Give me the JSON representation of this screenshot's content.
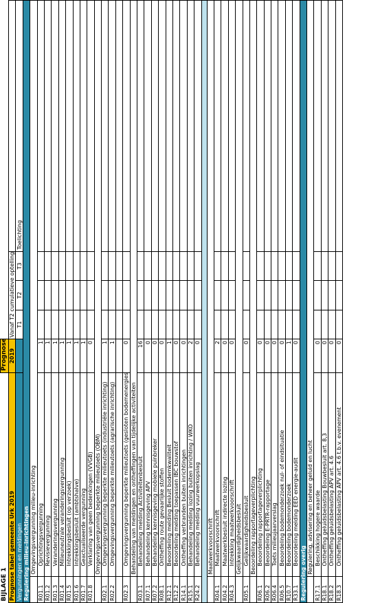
{
  "title": "BIJLAGE 1",
  "subtitle": "Prognose tabel gemeente Urk 2019",
  "headers": {
    "prognose": "Prognose",
    "year": "2019",
    "vanaf": "Vanaf T2 cumulatieve optelling",
    "t1": "T1",
    "t2": "T2",
    "t3": "T3",
    "toelichting": "Toelichting",
    "vergunningen": "Vergunningen en meldingen"
  },
  "sections": [
    {
      "type": "cat",
      "label": "Regulering milieu-inrichtingen"
    },
    {
      "type": "sub",
      "label": "Omgevingsvergunning milieu-inrichting"
    },
    {
      "type": "row",
      "code": "R01.1",
      "label": "Oprichtingsvergunning",
      "value": "1"
    },
    {
      "type": "row",
      "code": "R01.2",
      "label": "Revisievergunning",
      "value": "1"
    },
    {
      "type": "row",
      "code": "R01.3",
      "label": "Veranderingsvergunning",
      "value": "1"
    },
    {
      "type": "row",
      "code": "R01.4",
      "label": "Milieuneutrale veranderingsvergunning",
      "value": "1"
    },
    {
      "type": "row",
      "code": "R01.5",
      "label": "Intrekkingsbesluit (op verzoek)",
      "value": "1"
    },
    {
      "type": "row",
      "code": "R01.6",
      "label": "Intrekkingsbesluit (ambtshalve)",
      "value": "1"
    },
    {
      "type": "row",
      "code": "R01.7",
      "label": "Geactualiseerde vergunning",
      "value": "1"
    },
    {
      "type": "row",
      "code": "R01.8",
      "label": "Verklaring van geen bedenkingen (VVGB)",
      "value": "0"
    },
    {
      "type": "sub",
      "label": "Omgevingsvergunning beperkte milieutoets (OBM)"
    },
    {
      "type": "row",
      "code": "R02.1",
      "label": "Omgevingsvergunning beperkte milieutoets (industriële inrichting)",
      "value": "1"
    },
    {
      "type": "row",
      "code": "R02.2",
      "label": "Omgevingsvergunning beperkte milieutoets (agrarische inrichting)",
      "value": "1"
    },
    {
      "type": "blank"
    },
    {
      "type": "row",
      "code": "R02.3",
      "label": "Omgevingsvergunning beperkte milieutoets (gesloten bodemenergiesysteem)",
      "value": "0"
    },
    {
      "type": "sub",
      "label": "Behandeling van meldingen en ontheffingen van tijdelijke activiteiten"
    },
    {
      "type": "row",
      "code": "R03.1",
      "label": "Behandeling melding Activiteitenbesluit",
      "value": "16"
    },
    {
      "type": "row",
      "code": "R07.1",
      "label": "Behandeling kennisgeving APV",
      "value": "0"
    },
    {
      "type": "row",
      "code": "R07.2",
      "label": "Behandeling kennisgeving mobiele puinbreker",
      "value": "0"
    },
    {
      "type": "row",
      "code": "R08.1",
      "label": "Ontheffing route gevaarlijke stoffen",
      "value": "0"
    },
    {
      "type": "row",
      "code": "R12.1",
      "label": "Beoordeling melding Besluit bodemkwaliteit",
      "value": "1"
    },
    {
      "type": "row",
      "code": "R12.2",
      "label": "Beoordeling melding toepassen IBC bouwstof",
      "value": "0"
    },
    {
      "type": "row",
      "code": "R14.1",
      "label": "Ontheffing verbranden buiten inrichtingen",
      "value": "0"
    },
    {
      "type": "row",
      "code": "R15.1",
      "label": "Behandeling melding lozing buiten inrichting / WKO",
      "value": "2"
    },
    {
      "type": "row",
      "code": "R24.2",
      "label": "Behandeling melding vuurwerkopslag",
      "value": "0"
    },
    {
      "type": "spacer"
    },
    {
      "type": "sub",
      "label": "Maatwerkvoorschrift"
    },
    {
      "type": "row",
      "code": "R04.1",
      "label": "Maatwerkvoorschrift",
      "value": "2"
    },
    {
      "type": "row",
      "code": "R04.2",
      "label": "Maatwerkbesluit indirecte lozing",
      "value": "0"
    },
    {
      "type": "row",
      "code": "R04.3",
      "label": "Intrekking maatwerkvoorschrift",
      "value": "0"
    },
    {
      "type": "sub",
      "label": "Gelijkwaardigheidsbesluit"
    },
    {
      "type": "row",
      "code": "R05.1",
      "label": "Gelijkwaardigheidsbesluit",
      "value": "0"
    },
    {
      "type": "sub",
      "label": "Beoordeling rapportageverplichting"
    },
    {
      "type": "row",
      "code": "R06.1",
      "label": "Beoordeling rapportageverplichting",
      "value": "0"
    },
    {
      "type": "row",
      "code": "R06.2",
      "label": "Beoordeling E-PRTR-rapportage",
      "value": "0"
    },
    {
      "type": "row",
      "code": "R06.4",
      "label": "Toets milieujaarverslag",
      "value": "0"
    },
    {
      "type": "row",
      "code": "R06.5",
      "label": "Beoordeling bodemonderzoek nul- of eindsituatie",
      "value": "0"
    },
    {
      "type": "row",
      "code": "R10.7",
      "label": "Beoordeling bodemonderzoek",
      "value": "1"
    },
    {
      "type": "row",
      "code": "R33.1",
      "label": "Beoordeling melding EED energie-audit",
      "value": "0"
    },
    {
      "type": "cat",
      "label": "Regulering overig"
    },
    {
      "type": "sub",
      "label": "Regulering, advisering en beheer geluid en lucht"
    },
    {
      "type": "row",
      "code": "R17.1",
      "label": "Beschikking hogere waarde",
      "value": "0"
    },
    {
      "type": "row",
      "code": "R18.1",
      "label": "Ontheffing geluidsbelasting Bouwbesluit art. 8,3",
      "value": "0"
    },
    {
      "type": "row",
      "code": "R18.2",
      "label": "Ontheffing geluidsbelasting APV art. 4.6",
      "value": "0"
    },
    {
      "type": "row",
      "code": "R18.3",
      "label": "Ontheffing geluidsbelasting APV art. 4.6 t.b.v. evenement",
      "value": "0"
    }
  ]
}
